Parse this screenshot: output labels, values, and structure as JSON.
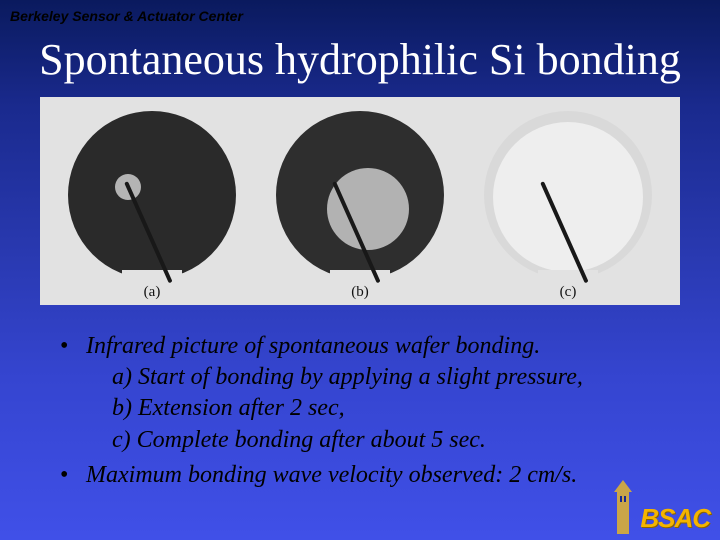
{
  "header": "Berkeley Sensor & Actuator Center",
  "title": "Spontaneous hydrophilic Si bonding",
  "figure": {
    "background": "#e2e2e2",
    "panels": [
      {
        "letterLabel": "(a)",
        "outer": {
          "diam": 168,
          "color": "#2a2a2a"
        },
        "inner": {
          "diam": 26,
          "color": "#b4b4b4",
          "offsetX": -24,
          "offsetY": -8
        }
      },
      {
        "letterLabel": "(b)",
        "outer": {
          "diam": 168,
          "color": "#2e2e2e"
        },
        "inner": {
          "diam": 82,
          "color": "#b2b2b2",
          "offsetX": 8,
          "offsetY": 14
        }
      },
      {
        "letterLabel": "(c)",
        "outer": {
          "diam": 168,
          "color": "#d9d9d9"
        },
        "inner": {
          "diam": 150,
          "color": "#eeeeee",
          "offsetX": 0,
          "offsetY": 2
        }
      }
    ],
    "needleColor": "#181818"
  },
  "bullets": [
    {
      "lead": "Infrared picture of spontaneous wafer bonding.",
      "subs": [
        "a) Start of bonding by applying a slight pressure,",
        "b) Extension after 2 sec,",
        "c) Complete bonding after about 5 sec."
      ]
    },
    {
      "lead": "Maximum bonding wave velocity observed: 2 cm/s.",
      "subs": []
    }
  ],
  "logo": {
    "text": "BSAC",
    "towerColor": "#caa548"
  }
}
